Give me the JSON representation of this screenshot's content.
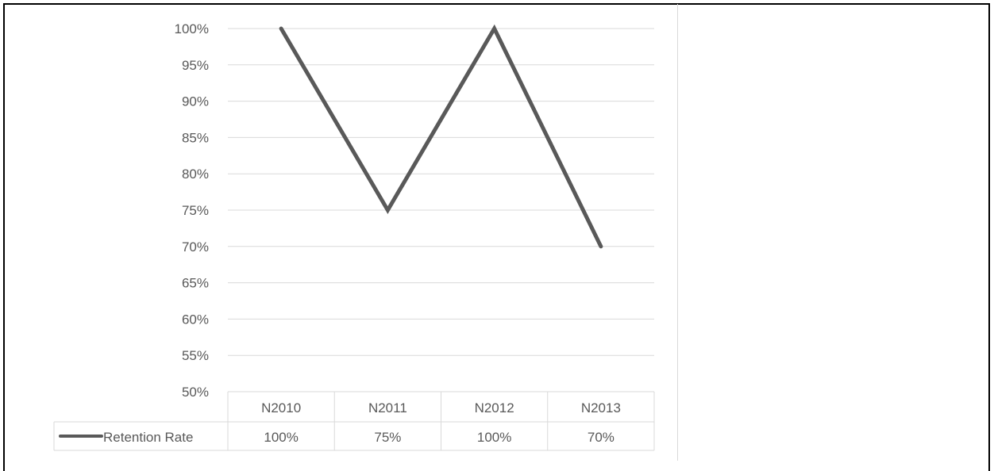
{
  "chart_data": {
    "type": "line",
    "categories": [
      "N2010",
      "N2011",
      "N2012",
      "N2013"
    ],
    "series": [
      {
        "name": "Retention Rate",
        "values": [
          100,
          75,
          100,
          70
        ],
        "color": "#595959"
      }
    ],
    "data_table_values": [
      "100%",
      "75%",
      "100%",
      "70%"
    ],
    "y_ticks": [
      "100%",
      "95%",
      "90%",
      "85%",
      "80%",
      "75%",
      "70%",
      "65%",
      "60%",
      "55%",
      "50%"
    ],
    "ylim": [
      50,
      100
    ],
    "y_step": 5,
    "grid": true,
    "title": "",
    "xlabel": "",
    "ylabel": "",
    "legend": "data-table"
  }
}
